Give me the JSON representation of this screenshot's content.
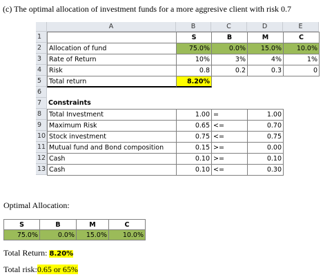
{
  "title": "(c) The optimal allocation of investment funds for a more aggresive client with risk 0.7",
  "sheet": {
    "columns": [
      "A",
      "B",
      "C",
      "D",
      "E"
    ],
    "rows": [
      {
        "num": 1,
        "cells": [
          null,
          "S",
          "B",
          "M",
          "C"
        ]
      },
      {
        "num": 2,
        "cells": [
          "Allocation of fund",
          "75.0%",
          "0.0%",
          "15.0%",
          "10.0%"
        ]
      },
      {
        "num": 3,
        "cells": [
          "Rate of Return",
          "10%",
          "3%",
          "4%",
          "1%"
        ]
      },
      {
        "num": 4,
        "cells": [
          "Risk",
          "0.8",
          "0.2",
          "0.3",
          "0"
        ]
      },
      {
        "num": 5,
        "cells": [
          "Total return",
          "8.20%",
          null,
          null,
          null
        ]
      },
      {
        "num": 6,
        "cells": [
          null,
          null,
          null,
          null,
          null
        ]
      },
      {
        "num": 7,
        "cells": [
          "Constraints",
          null,
          null,
          null,
          null
        ]
      },
      {
        "num": 8,
        "cells": [
          "Total Investment",
          "1.00",
          "=",
          "1.00",
          null
        ]
      },
      {
        "num": 9,
        "cells": [
          "Maximum Risk",
          "0.65",
          "<=",
          "0.70",
          null
        ]
      },
      {
        "num": 10,
        "cells": [
          "Stock investment",
          "0.75",
          "<=",
          "0.75",
          null
        ]
      },
      {
        "num": 11,
        "cells": [
          "Mutual fund and Bond composition",
          "0.15",
          ">=",
          "0.00",
          null
        ]
      },
      {
        "num": 12,
        "cells": [
          "Cash",
          "0.10",
          ">=",
          "0.10",
          null
        ]
      },
      {
        "num": 13,
        "cells": [
          "Cash",
          "0.10",
          "<=",
          "0.30",
          null
        ]
      }
    ]
  },
  "optimal": {
    "label": "Optimal Allocation:",
    "headers": [
      "S",
      "B",
      "M",
      "C"
    ],
    "values": [
      "75.0%",
      "0.0%",
      "15.0%",
      "10.0%"
    ]
  },
  "total_return": {
    "label": "Total Return:",
    "value": "8.20%"
  },
  "total_risk": {
    "label": "Total risk:",
    "value": "0.65 or 65%"
  }
}
